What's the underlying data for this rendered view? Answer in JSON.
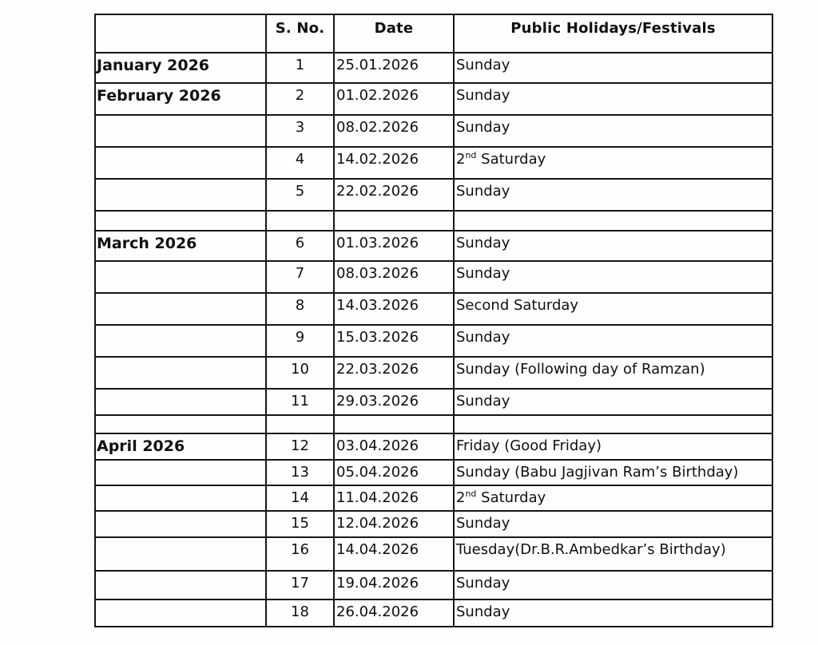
{
  "document": {
    "kind": "scanned-holiday-calendar",
    "year": "2026",
    "ink_color": "#161616",
    "paper_color": "#fefefe"
  },
  "table": {
    "headers": {
      "month": "",
      "sno": "S. No.",
      "date": "Date",
      "holiday": "Public Holidays/Festivals"
    },
    "rows": [
      {
        "spacer": false,
        "month": "January 2026",
        "sno": "1",
        "date": "25.01.2026",
        "holiday": [
          {
            "t": "Sunday"
          }
        ]
      },
      {
        "spacer": false,
        "month": "February 2026",
        "sno": "2",
        "date": "01.02.2026",
        "holiday": [
          {
            "t": "Sunday"
          }
        ]
      },
      {
        "spacer": false,
        "month": "",
        "sno": "3",
        "date": "08.02.2026",
        "holiday": [
          {
            "t": "Sunday"
          }
        ]
      },
      {
        "spacer": false,
        "month": "",
        "sno": "4",
        "date": "14.02.2026",
        "holiday": [
          {
            "t": "2"
          },
          {
            "t": "nd",
            "sup": true
          },
          {
            "t": " Saturday"
          }
        ]
      },
      {
        "spacer": false,
        "month": "",
        "sno": "5",
        "date": "22.02.2026",
        "holiday": [
          {
            "t": "Sunday"
          }
        ]
      },
      {
        "spacer": true,
        "month": "",
        "sno": "",
        "date": "",
        "holiday": []
      },
      {
        "spacer": false,
        "month": "March 2026",
        "sno": "6",
        "date": "01.03.2026",
        "holiday": [
          {
            "t": "Sunday"
          }
        ]
      },
      {
        "spacer": false,
        "month": "",
        "sno": "7",
        "date": "08.03.2026",
        "holiday": [
          {
            "t": "Sunday"
          }
        ]
      },
      {
        "spacer": false,
        "month": "",
        "sno": "8",
        "date": "14.03.2026",
        "holiday": [
          {
            "t": "Second Saturday"
          }
        ]
      },
      {
        "spacer": false,
        "month": "",
        "sno": "9",
        "date": "15.03.2026",
        "holiday": [
          {
            "t": "Sunday"
          }
        ]
      },
      {
        "spacer": false,
        "month": "",
        "sno": "10",
        "date": "22.03.2026",
        "holiday": [
          {
            "t": "Sunday (Following day of Ramzan)"
          }
        ]
      },
      {
        "spacer": false,
        "month": "",
        "sno": "11",
        "date": "29.03.2026",
        "holiday": [
          {
            "t": "Sunday"
          }
        ]
      },
      {
        "spacer": true,
        "month": "",
        "sno": "",
        "date": "",
        "holiday": []
      },
      {
        "spacer": false,
        "month": "April 2026",
        "sno": "12",
        "date": "03.04.2026",
        "holiday": [
          {
            "t": "Friday (Good Friday)"
          }
        ]
      },
      {
        "spacer": false,
        "month": "",
        "sno": "13",
        "date": "05.04.2026",
        "holiday": [
          {
            "t": "Sunday (Babu Jagjivan Ram’s Birthday)"
          }
        ]
      },
      {
        "spacer": false,
        "month": "",
        "sno": "14",
        "date": "11.04.2026",
        "holiday": [
          {
            "t": "2"
          },
          {
            "t": "nd",
            "sup": true
          },
          {
            "t": " Saturday"
          }
        ]
      },
      {
        "spacer": false,
        "month": "",
        "sno": "15",
        "date": "12.04.2026",
        "holiday": [
          {
            "t": "Sunday"
          }
        ]
      },
      {
        "spacer": false,
        "month": "",
        "sno": "16",
        "date": "14.04.2026",
        "holiday": [
          {
            "t": "Tuesday(Dr.B.R.Ambedkar’s Birthday)"
          }
        ]
      },
      {
        "spacer": false,
        "month": "",
        "sno": "17",
        "date": "19.04.2026",
        "holiday": [
          {
            "t": "Sunday"
          }
        ]
      },
      {
        "spacer": false,
        "month": "",
        "sno": "18",
        "date": "26.04.2026",
        "holiday": [
          {
            "t": "Sunday"
          }
        ]
      }
    ]
  }
}
